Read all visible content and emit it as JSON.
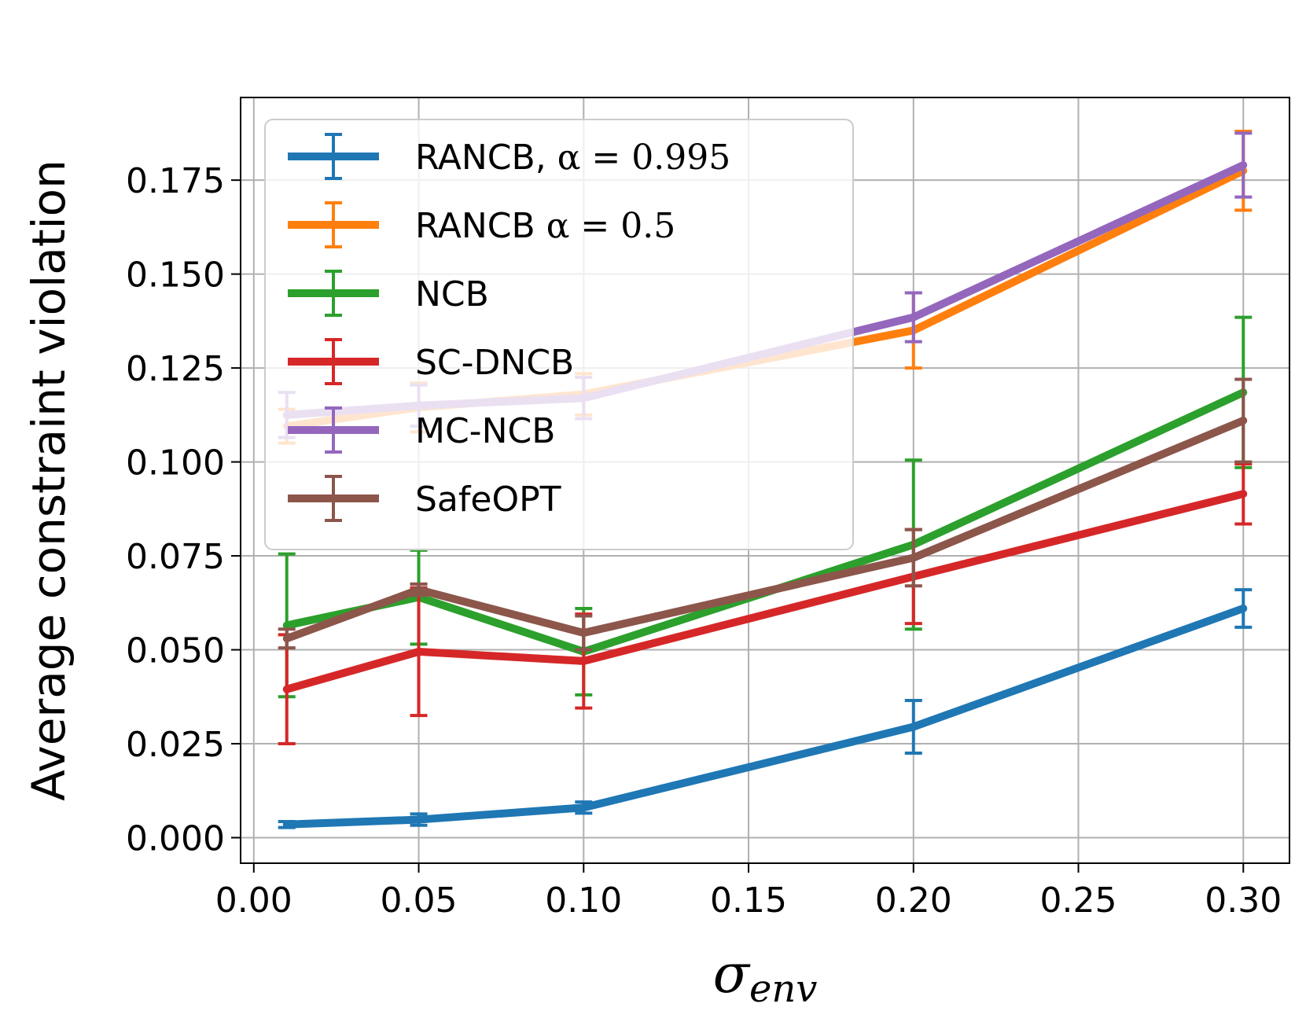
{
  "chart_data": {
    "type": "line",
    "title": "",
    "xlabel": "σ",
    "xlabel_sub": "env",
    "ylabel": "Average constraint violation",
    "x": [
      0.01,
      0.05,
      0.1,
      0.2,
      0.3
    ],
    "xlim": [
      -0.004,
      0.314
    ],
    "ylim": [
      -0.0068,
      0.197
    ],
    "xticks": [
      0.0,
      0.05,
      0.1,
      0.15,
      0.2,
      0.25,
      0.3
    ],
    "xtick_labels": [
      "0.00",
      "0.05",
      "0.10",
      "0.15",
      "0.20",
      "0.25",
      "0.30"
    ],
    "yticks": [
      0.0,
      0.025,
      0.05,
      0.075,
      0.1,
      0.125,
      0.15,
      0.175
    ],
    "ytick_labels": [
      "0.000",
      "0.025",
      "0.050",
      "0.075",
      "0.100",
      "0.125",
      "0.150",
      "0.175"
    ],
    "grid": true,
    "legend_position": "upper-left",
    "series": [
      {
        "name": "RANCB,",
        "legend_math": "α = 0.995",
        "color": "#1f77b4",
        "values": [
          0.0035,
          0.0048,
          0.008,
          0.0295,
          0.061
        ],
        "errors": [
          0.0008,
          0.0015,
          0.0015,
          0.007,
          0.005
        ]
      },
      {
        "name": "RANCB",
        "legend_math": "α = 0.5",
        "color": "#ff7f0e",
        "values": [
          0.1095,
          0.1145,
          0.118,
          0.135,
          0.1775
        ],
        "errors": [
          0.0045,
          0.0065,
          0.0055,
          0.01,
          0.0105
        ]
      },
      {
        "name": "NCB",
        "legend_math": "",
        "color": "#2ca02c",
        "values": [
          0.0565,
          0.064,
          0.0495,
          0.078,
          0.1185
        ],
        "errors": [
          0.019,
          0.0125,
          0.0115,
          0.0225,
          0.02
        ]
      },
      {
        "name": "SC-DNCB",
        "legend_math": "",
        "color": "#d62728",
        "values": [
          0.0395,
          0.0495,
          0.047,
          0.0695,
          0.0915
        ],
        "errors": [
          0.0145,
          0.017,
          0.0125,
          0.0125,
          0.008
        ]
      },
      {
        "name": "MC-NCB",
        "legend_math": "",
        "color": "#9467bd",
        "values": [
          0.1125,
          0.115,
          0.117,
          0.1385,
          0.179
        ],
        "errors": [
          0.006,
          0.0055,
          0.0055,
          0.0065,
          0.0085
        ]
      },
      {
        "name": "SafeOPT",
        "legend_math": "",
        "color": "#8c564b",
        "values": [
          0.053,
          0.066,
          0.0545,
          0.0745,
          0.111
        ],
        "errors": [
          0.0025,
          0.0015,
          0.0045,
          0.0075,
          0.011
        ]
      }
    ]
  }
}
